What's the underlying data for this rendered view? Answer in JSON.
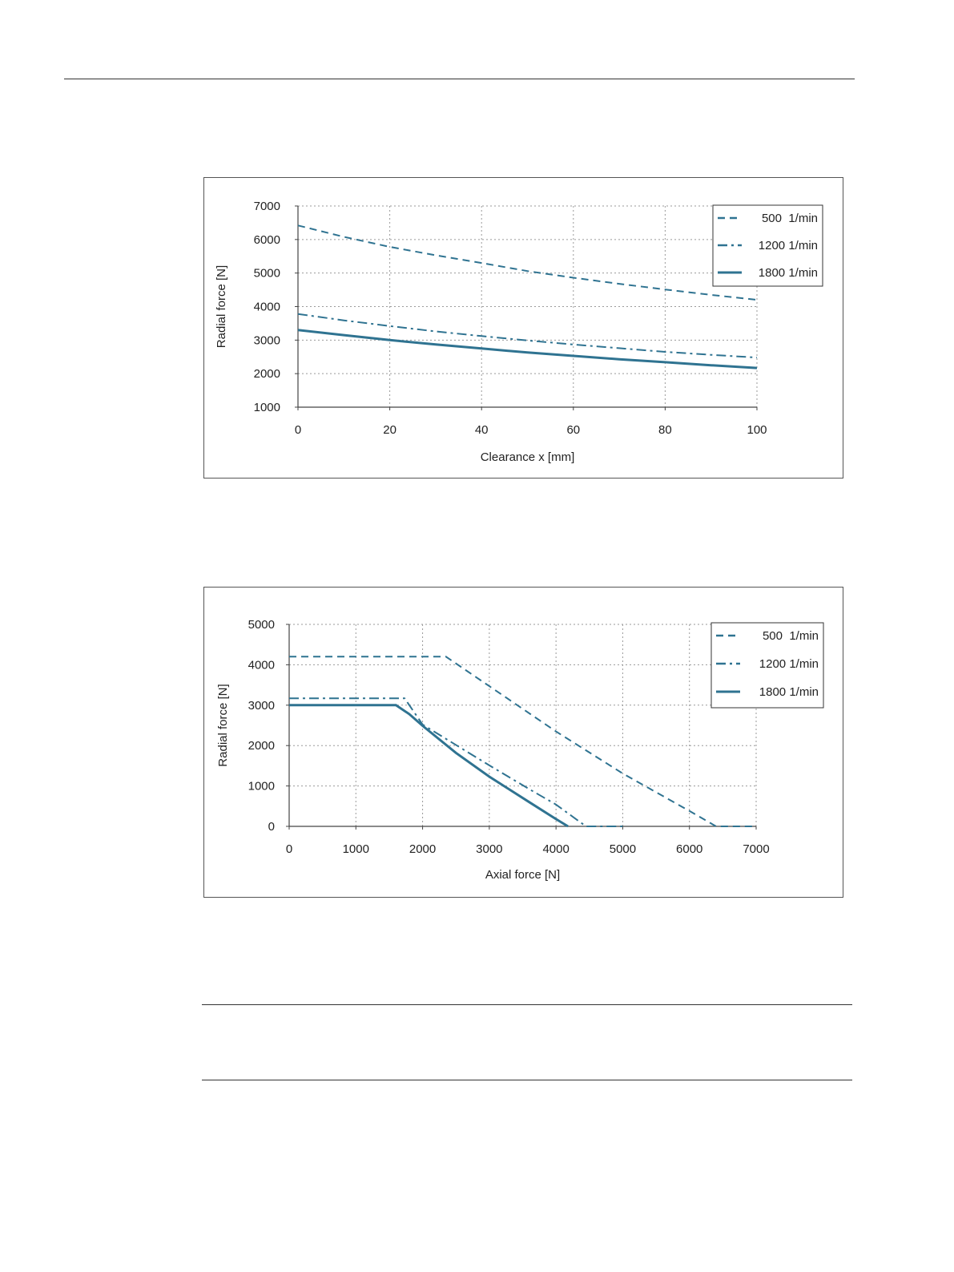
{
  "colors": {
    "series": "#2f7391",
    "grid": "#9a9a9a",
    "axis": "#444444",
    "frame": "#555555"
  },
  "chart_data": [
    {
      "type": "line",
      "title": "",
      "xlabel": "Clearance x [mm]",
      "ylabel": "Radial force [N]",
      "xlim": [
        0,
        100
      ],
      "ylim": [
        1000,
        7000
      ],
      "xticks": [
        0,
        20,
        40,
        60,
        80,
        100
      ],
      "yticks": [
        1000,
        2000,
        3000,
        4000,
        5000,
        6000,
        7000
      ],
      "grid": true,
      "legend_position": "top-right",
      "series": [
        {
          "name": "500  1/min",
          "style": "dashed",
          "x": [
            0,
            10,
            20,
            30,
            40,
            50,
            60,
            70,
            80,
            90,
            100
          ],
          "values": [
            6420,
            6080,
            5780,
            5530,
            5300,
            5060,
            4860,
            4680,
            4510,
            4350,
            4200
          ]
        },
        {
          "name": "1200 1/min",
          "style": "dashdot",
          "x": [
            0,
            10,
            20,
            30,
            40,
            50,
            60,
            70,
            80,
            90,
            100
          ],
          "values": [
            3780,
            3590,
            3420,
            3260,
            3120,
            2990,
            2870,
            2760,
            2650,
            2560,
            2480
          ]
        },
        {
          "name": "1800 1/min",
          "style": "solid",
          "x": [
            0,
            10,
            20,
            30,
            40,
            50,
            60,
            70,
            80,
            90,
            100
          ],
          "values": [
            3300,
            3150,
            3000,
            2870,
            2750,
            2630,
            2530,
            2430,
            2340,
            2250,
            2170
          ]
        }
      ]
    },
    {
      "type": "line",
      "title": "",
      "xlabel": "Axial force [N]",
      "ylabel": "Radial force [N]",
      "xlim": [
        0,
        7000
      ],
      "ylim": [
        0,
        5000
      ],
      "xticks": [
        0,
        1000,
        2000,
        3000,
        4000,
        5000,
        6000,
        7000
      ],
      "yticks": [
        0,
        1000,
        2000,
        3000,
        4000,
        5000
      ],
      "grid": true,
      "legend_position": "top-right",
      "series": [
        {
          "name": "500  1/min",
          "style": "dashed",
          "x": [
            0,
            2350,
            3000,
            4000,
            5000,
            6000,
            6400,
            7000
          ],
          "values": [
            4200,
            4200,
            3470,
            2350,
            1310,
            380,
            0,
            0
          ]
        },
        {
          "name": "1200 1/min",
          "style": "dashdot",
          "x": [
            0,
            1730,
            2000,
            3000,
            3600,
            4000,
            4450,
            5000
          ],
          "values": [
            3170,
            3170,
            2520,
            1510,
            920,
            540,
            0,
            0
          ]
        },
        {
          "name": "1800 1/min",
          "style": "solid",
          "x": [
            0,
            1600,
            1800,
            2000,
            2500,
            3000,
            3600,
            4000,
            4180
          ],
          "values": [
            3000,
            3000,
            2780,
            2490,
            1820,
            1230,
            600,
            180,
            0
          ]
        }
      ]
    }
  ]
}
